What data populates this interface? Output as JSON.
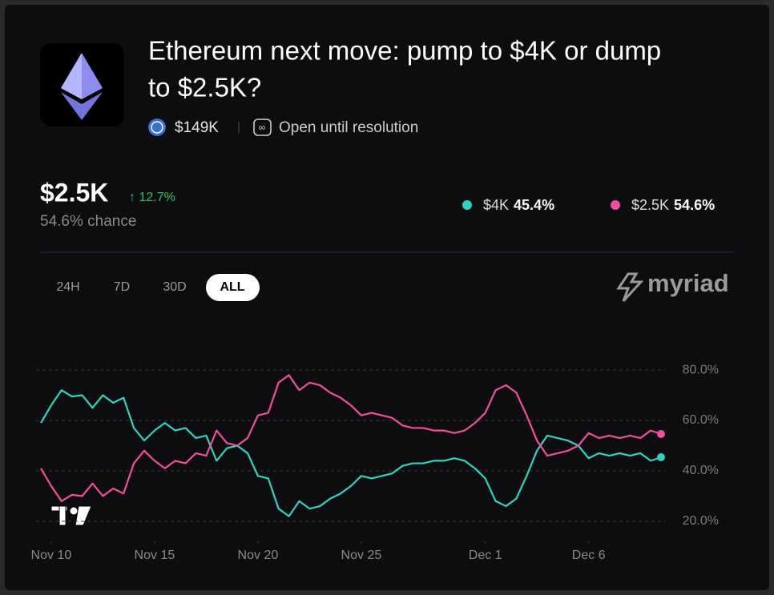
{
  "header": {
    "title_line1": "Ethereum next move: pump to $4K or dump",
    "title_line2": "to $2.5K?",
    "volume": "$149K",
    "status": "Open until resolution"
  },
  "summary": {
    "price": "$2.5K",
    "change": "↑ 12.7%",
    "chance": "54.6% chance"
  },
  "tabs": [
    "24H",
    "7D",
    "30D",
    "ALL"
  ],
  "brand": "myriad",
  "chart_data": {
    "type": "line",
    "x": [
      9.5,
      10,
      10.5,
      11,
      11.5,
      12,
      12.5,
      13,
      13.5,
      14,
      14.5,
      15,
      15.5,
      16,
      16.5,
      17,
      17.5,
      18,
      18.5,
      19,
      19.5,
      20,
      20.5,
      21,
      21.5,
      22,
      22.5,
      23,
      23.5,
      24,
      24.5,
      25,
      25.5,
      26,
      26.5,
      27,
      27.5,
      28,
      28.5,
      29,
      29.5,
      30,
      30.5,
      31,
      31.5,
      32,
      32.5,
      33,
      33.5,
      34,
      34.5,
      35,
      35.5,
      36,
      36.5,
      37,
      37.5,
      38,
      38.5,
      39,
      39.5
    ],
    "xlim": [
      9.5,
      39.5
    ],
    "xticks": [
      {
        "value": 10,
        "label": "Nov 10"
      },
      {
        "value": 15,
        "label": "Nov 15"
      },
      {
        "value": 20,
        "label": "Nov 20"
      },
      {
        "value": 25,
        "label": "Nov 25"
      },
      {
        "value": 31,
        "label": "Dec 1"
      },
      {
        "value": 36,
        "label": "Dec 6"
      }
    ],
    "ylim": [
      13,
      87
    ],
    "yticks": [
      {
        "value": 20,
        "label": "20.0%"
      },
      {
        "value": 40,
        "label": "40.0%"
      },
      {
        "value": 60,
        "label": "60.0%"
      },
      {
        "value": 80,
        "label": "80.0%"
      }
    ],
    "grid": true,
    "series": [
      {
        "name": "$4K",
        "color": "#2dd4bf",
        "current": "45.4%",
        "values": [
          59,
          66,
          72,
          69.5,
          70,
          65,
          70,
          67,
          69,
          57,
          52,
          56,
          59,
          56,
          57,
          53,
          54,
          44,
          49,
          50,
          47,
          38,
          37,
          25,
          22,
          28,
          25,
          26,
          29,
          31,
          34,
          38,
          37,
          38,
          39,
          42,
          43,
          43,
          44,
          44,
          45,
          44,
          41,
          37,
          28,
          26,
          29,
          38,
          48,
          54,
          53,
          52,
          50,
          45,
          47,
          46,
          47,
          46,
          47,
          44,
          45.4
        ]
      },
      {
        "name": "$2.5K",
        "color": "#f0509a",
        "current": "54.6%",
        "values": [
          41,
          34,
          28,
          30.5,
          30,
          35,
          30,
          33,
          31,
          43,
          48,
          44,
          41,
          44,
          43,
          47,
          46,
          56,
          51,
          50,
          53,
          62,
          63,
          75,
          78,
          72,
          75,
          74,
          71,
          69,
          66,
          62,
          63,
          62,
          61,
          58,
          57,
          57,
          56,
          56,
          55,
          56,
          59,
          63,
          72,
          74,
          71,
          62,
          52,
          46,
          47,
          48,
          50,
          55,
          53,
          54,
          53,
          54,
          53,
          56,
          54.6
        ]
      }
    ]
  }
}
